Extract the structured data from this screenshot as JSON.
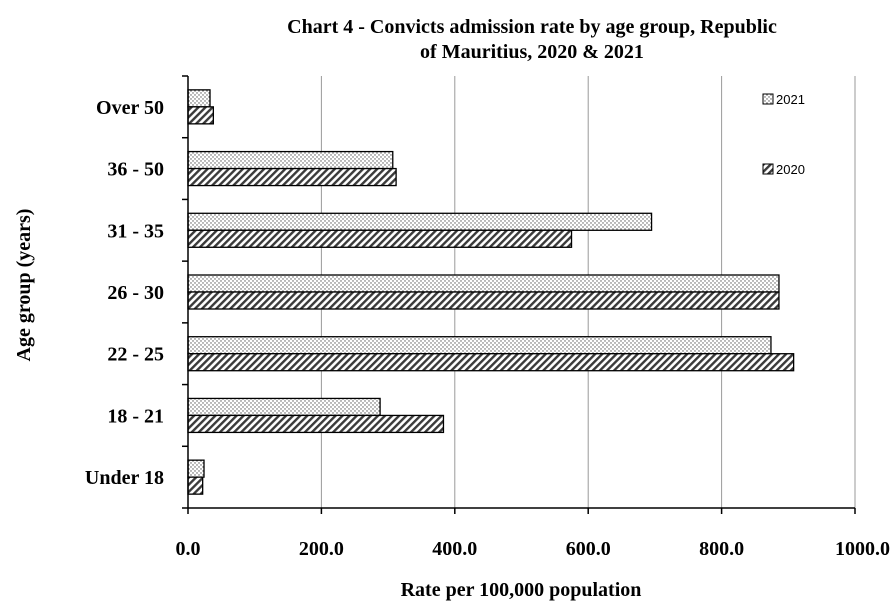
{
  "chart_data": {
    "type": "bar",
    "orientation": "horizontal",
    "title_lines": [
      "Chart 4 - Convicts admission rate by age group, Republic",
      "of Mauritius, 2020  & 2021"
    ],
    "xlabel": "Rate per 100,000 population",
    "ylabel": "Age group (years)",
    "xlim": [
      0,
      1000
    ],
    "x_ticks": [
      "0.0",
      "200.0",
      "400.0",
      "600.0",
      "800.0",
      "1000.0"
    ],
    "categories": [
      "Over 50",
      "36 - 50",
      "31 - 35",
      "26 - 30",
      "22 - 25",
      "18 - 21",
      "Under 18"
    ],
    "series": [
      {
        "name": "2021",
        "values": [
          33,
          307,
          695,
          886,
          874,
          288,
          24
        ],
        "pattern": "dots"
      },
      {
        "name": "2020",
        "values": [
          38,
          312,
          575,
          886,
          908,
          383,
          22
        ],
        "pattern": "diagonal"
      }
    ],
    "grid": "vertical",
    "legend": "top-right"
  }
}
